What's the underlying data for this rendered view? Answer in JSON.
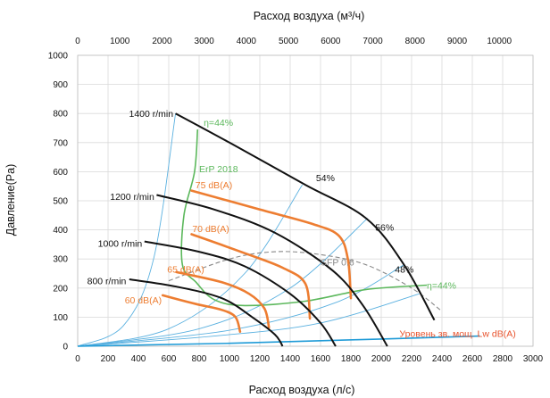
{
  "chart_data": {
    "type": "line",
    "title": "",
    "xlabel": "Расход воздуха  (л/с)",
    "x2label": "Расход воздуха  (м³/ч)",
    "ylabel": "Давление(Pa)",
    "xlim": [
      0,
      3000
    ],
    "x2lim": [
      0,
      10800
    ],
    "ylim": [
      0,
      1000
    ],
    "x_ticks": [
      0,
      200,
      400,
      600,
      800,
      1000,
      1200,
      1400,
      1600,
      1800,
      2000,
      2200,
      2400,
      2600,
      2800,
      3000
    ],
    "x2_ticks": [
      0,
      1000,
      2000,
      3000,
      4000,
      5000,
      6000,
      7000,
      8000,
      9000,
      10000
    ],
    "y_ticks": [
      0,
      100,
      200,
      300,
      400,
      500,
      600,
      700,
      800,
      900,
      1000
    ],
    "grid": true,
    "colors": {
      "fan": "#111111",
      "sound": "#ed7d31",
      "system": "#5bb1e0",
      "erp": "#5cb85c",
      "sfp": "#888888",
      "lw": "#1f9bd7",
      "lw_label": "#e8542e"
    },
    "fan_curves": [
      {
        "name": "1400 r/min",
        "points": [
          [
            645,
            800
          ],
          [
            1000,
            700
          ],
          [
            1500,
            555
          ],
          [
            1900,
            440
          ],
          [
            2150,
            280
          ],
          [
            2350,
            90
          ]
        ]
      },
      {
        "name": "1200 r/min",
        "points": [
          [
            520,
            520
          ],
          [
            900,
            470
          ],
          [
            1300,
            390
          ],
          [
            1680,
            260
          ],
          [
            1880,
            140
          ],
          [
            2040,
            0
          ]
        ]
      },
      {
        "name": "1000 r/min",
        "points": [
          [
            440,
            360
          ],
          [
            800,
            325
          ],
          [
            1100,
            275
          ],
          [
            1400,
            180
          ],
          [
            1600,
            80
          ],
          [
            1700,
            0
          ]
        ]
      },
      {
        "name": "800 r/min",
        "points": [
          [
            340,
            230
          ],
          [
            650,
            205
          ],
          [
            950,
            165
          ],
          [
            1150,
            100
          ],
          [
            1300,
            40
          ],
          [
            1350,
            0
          ]
        ]
      }
    ],
    "sound_curves": [
      {
        "name": "75 dB(A)",
        "points": [
          [
            750,
            535
          ],
          [
            1200,
            470
          ],
          [
            1550,
            420
          ],
          [
            1720,
            380
          ],
          [
            1780,
            300
          ],
          [
            1800,
            165
          ]
        ]
      },
      {
        "name": "70 dB(A)",
        "points": [
          [
            750,
            385
          ],
          [
            1100,
            320
          ],
          [
            1350,
            270
          ],
          [
            1500,
            215
          ],
          [
            1530,
            95
          ]
        ]
      },
      {
        "name": "65 dB(A)",
        "points": [
          [
            650,
            255
          ],
          [
            950,
            220
          ],
          [
            1130,
            180
          ],
          [
            1230,
            130
          ],
          [
            1260,
            65
          ]
        ]
      },
      {
        "name": "60 dB(A)",
        "points": [
          [
            560,
            175
          ],
          [
            780,
            145
          ],
          [
            950,
            125
          ],
          [
            1040,
            100
          ],
          [
            1070,
            50
          ]
        ]
      }
    ],
    "system_curves": [
      {
        "points": [
          [
            0,
            0
          ],
          [
            300,
            70
          ],
          [
            500,
            300
          ],
          [
            645,
            800
          ]
        ]
      },
      {
        "points": [
          [
            0,
            0
          ],
          [
            600,
            60
          ],
          [
            1100,
            250
          ],
          [
            1480,
            555
          ]
        ]
      },
      {
        "points": [
          [
            0,
            0
          ],
          [
            800,
            60
          ],
          [
            1400,
            200
          ],
          [
            1910,
            440
          ]
        ]
      },
      {
        "points": [
          [
            0,
            0
          ],
          [
            1000,
            55
          ],
          [
            1700,
            150
          ],
          [
            2150,
            280
          ]
        ]
      },
      {
        "points": [
          [
            0,
            0
          ],
          [
            900,
            35
          ],
          [
            1600,
            80
          ],
          [
            2250,
            180
          ]
        ]
      }
    ],
    "erp_curve": {
      "name": "ErP 2018",
      "points": [
        [
          790,
          745
        ],
        [
          770,
          600
        ],
        [
          700,
          450
        ],
        [
          690,
          280
        ],
        [
          780,
          220
        ],
        [
          900,
          160
        ],
        [
          1100,
          140
        ],
        [
          1500,
          155
        ],
        [
          1900,
          195
        ],
        [
          2300,
          210
        ]
      ]
    },
    "sfp_curve": {
      "name": "SFP 0.6",
      "points": [
        [
          600,
          225
        ],
        [
          1000,
          300
        ],
        [
          1300,
          325
        ],
        [
          1600,
          315
        ],
        [
          1900,
          280
        ],
        [
          2200,
          200
        ],
        [
          2400,
          120
        ]
      ]
    },
    "lw_line": {
      "name": "Уровень зв. мощ. Lw dB(A)",
      "points": [
        [
          0,
          0
        ],
        [
          1000,
          10
        ],
        [
          2000,
          25
        ],
        [
          2650,
          35
        ]
      ]
    },
    "annotations": [
      {
        "text": "1400 r/min",
        "x": 630,
        "y": 800,
        "color": "#111111",
        "anchor": "end"
      },
      {
        "text": "1200 r/min",
        "x": 505,
        "y": 515,
        "color": "#111111",
        "anchor": "end"
      },
      {
        "text": "1000 r/min",
        "x": 425,
        "y": 355,
        "color": "#111111",
        "anchor": "end"
      },
      {
        "text": "800 r/min",
        "x": 320,
        "y": 225,
        "color": "#111111",
        "anchor": "end"
      },
      {
        "text": "η=44%",
        "x": 830,
        "y": 770,
        "color": "#5cb85c",
        "anchor": "start"
      },
      {
        "text": "η=44%",
        "x": 2300,
        "y": 210,
        "color": "#5cb85c",
        "anchor": "start"
      },
      {
        "text": "54%",
        "x": 1570,
        "y": 580,
        "color": "#111111",
        "anchor": "start"
      },
      {
        "text": "56%",
        "x": 1960,
        "y": 410,
        "color": "#111111",
        "anchor": "start"
      },
      {
        "text": "48%",
        "x": 2090,
        "y": 265,
        "color": "#111111",
        "anchor": "start"
      },
      {
        "text": "ErP 2018",
        "x": 800,
        "y": 610,
        "color": "#5cb85c",
        "anchor": "start"
      },
      {
        "text": "SFP 0.6",
        "x": 1600,
        "y": 290,
        "color": "#888888",
        "anchor": "start"
      },
      {
        "text": "75 dB(A)",
        "x": 775,
        "y": 555,
        "color": "#ed7d31",
        "anchor": "start"
      },
      {
        "text": "70 dB(A)",
        "x": 755,
        "y": 405,
        "color": "#ed7d31",
        "anchor": "start"
      },
      {
        "text": "65 dB(A)",
        "x": 590,
        "y": 265,
        "color": "#ed7d31",
        "anchor": "start"
      },
      {
        "text": "60 dB(A)",
        "x": 310,
        "y": 160,
        "color": "#ed7d31",
        "anchor": "start"
      },
      {
        "text": "Уровень зв. мощ. Lw dB(A)",
        "x": 2120,
        "y": 45,
        "color": "#e8542e",
        "anchor": "start"
      }
    ]
  }
}
